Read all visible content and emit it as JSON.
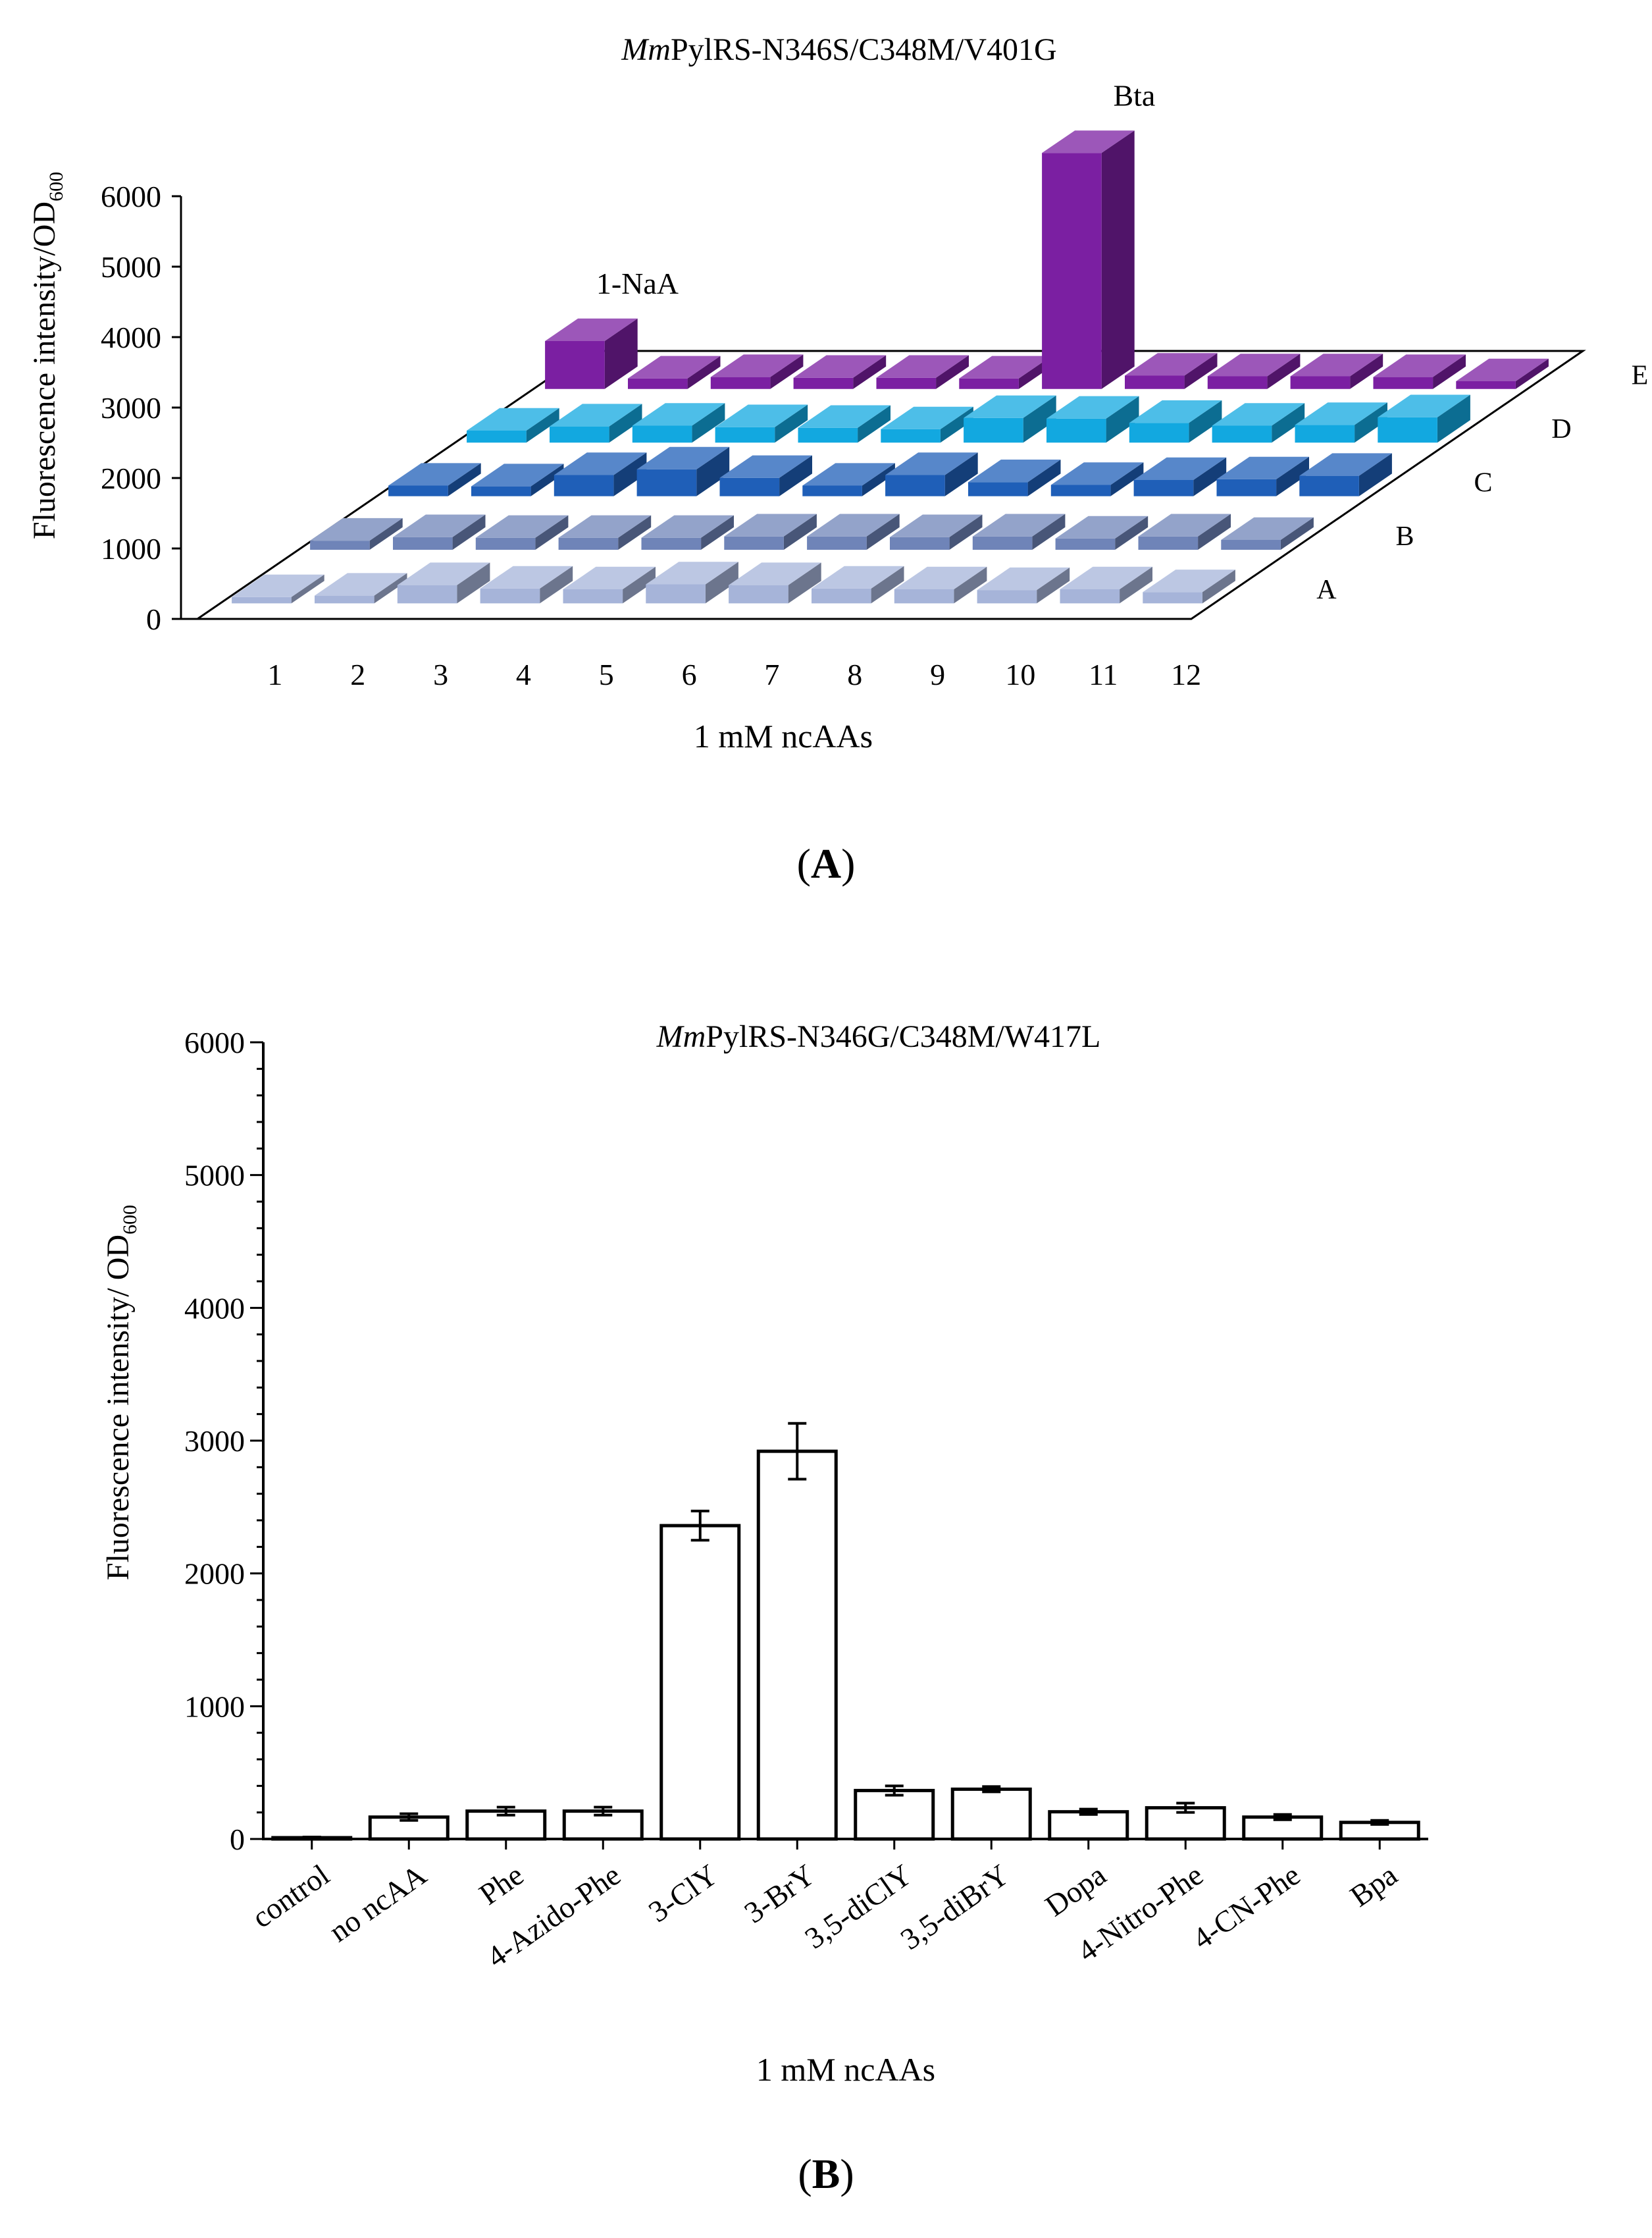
{
  "chart_data": [
    {
      "id": "A",
      "type": "bar",
      "style": "3d",
      "title": "MmPylRS-N346S/C348M/V401G",
      "title_italic": "Mm",
      "title_rest": "PylRS-N346S/C348M/V401G",
      "xlabel": "1 mM ncAAs",
      "ylabel": "Fluorescence  intensity/OD",
      "ylabel_sub": "600",
      "ylim": [
        0,
        6000
      ],
      "yticks": [
        0,
        1000,
        2000,
        3000,
        4000,
        5000,
        6000
      ],
      "categories": [
        "1",
        "2",
        "3",
        "4",
        "5",
        "6",
        "7",
        "8",
        "9",
        "10",
        "11",
        "12"
      ],
      "series": [
        {
          "name": "A",
          "color": "#a6b4d9",
          "values": [
            90,
            110,
            260,
            210,
            200,
            270,
            260,
            210,
            200,
            190,
            200,
            160
          ]
        },
        {
          "name": "B",
          "color": "#6f84b8",
          "values": [
            130,
            180,
            170,
            170,
            170,
            190,
            190,
            180,
            190,
            160,
            190,
            140
          ]
        },
        {
          "name": "C",
          "color": "#1f5fb8",
          "values": [
            150,
            140,
            300,
            380,
            260,
            150,
            300,
            200,
            160,
            230,
            240,
            290
          ]
        },
        {
          "name": "D",
          "color": "#12a8e0",
          "values": [
            170,
            230,
            240,
            220,
            210,
            190,
            350,
            340,
            280,
            240,
            250,
            360
          ]
        },
        {
          "name": "E",
          "color": "#7b1fa2",
          "values": [
            680,
            150,
            170,
            160,
            160,
            150,
            3350,
            190,
            180,
            180,
            170,
            110
          ]
        }
      ],
      "annotations": [
        {
          "text": "1-NaA",
          "series": "E",
          "category": "1"
        },
        {
          "text": "Bta",
          "series": "E",
          "category": "7"
        }
      ],
      "panel_label": "A"
    },
    {
      "id": "B",
      "type": "bar",
      "title": "MmPylRS-N346G/C348M/W417L",
      "title_italic": "Mm",
      "title_rest": "PylRS-N346G/C348M/W417L",
      "xlabel": "1 mM ncAAs",
      "ylabel": "Fluorescence intensity/ OD",
      "ylabel_sub": "600",
      "ylim": [
        0,
        6000
      ],
      "yticks": [
        0,
        1000,
        2000,
        3000,
        4000,
        5000,
        6000
      ],
      "categories": [
        "control",
        "no ncAA",
        "Phe",
        "4-Azido-Phe",
        "3-ClY",
        "3-BrY",
        "3,5-diClY",
        "3,5-diBrY",
        "Dopa",
        "4-Nitro-Phe",
        "4-CN-Phe",
        "Bpa"
      ],
      "values": [
        10,
        165,
        210,
        210,
        2360,
        2920,
        365,
        375,
        205,
        235,
        165,
        125
      ],
      "errors": [
        5,
        25,
        30,
        30,
        110,
        210,
        35,
        20,
        20,
        35,
        20,
        15
      ],
      "panel_label": "B"
    }
  ]
}
